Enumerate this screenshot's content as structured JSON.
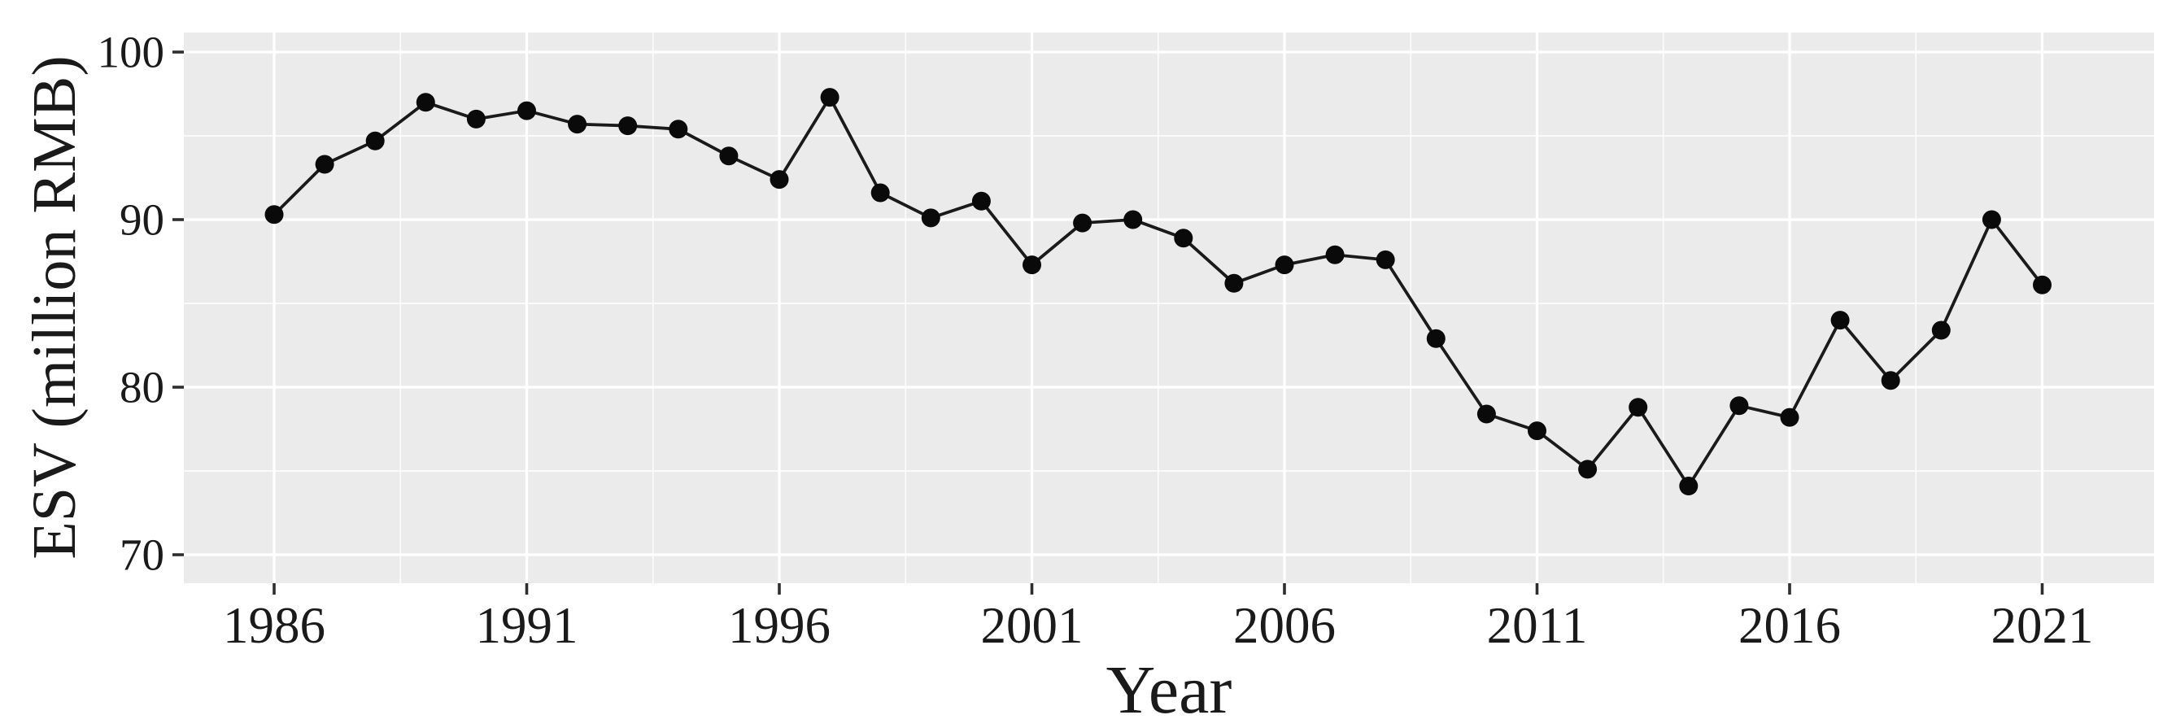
{
  "chart_data": {
    "type": "line",
    "title": "",
    "xlabel": "Year",
    "ylabel": "ESV (million RMB)",
    "x": [
      1986,
      1987,
      1988,
      1989,
      1990,
      1991,
      1992,
      1993,
      1994,
      1995,
      1996,
      1997,
      1998,
      1999,
      2000,
      2001,
      2002,
      2003,
      2004,
      2005,
      2006,
      2007,
      2008,
      2009,
      2010,
      2011,
      2012,
      2013,
      2014,
      2015,
      2016,
      2017,
      2018,
      2019,
      2020,
      2021
    ],
    "values": [
      90.3,
      93.3,
      94.7,
      97.0,
      96.0,
      96.5,
      95.7,
      95.6,
      95.4,
      93.8,
      92.4,
      97.3,
      91.6,
      90.1,
      91.1,
      87.3,
      89.8,
      90.0,
      88.9,
      86.2,
      87.3,
      87.9,
      87.6,
      82.9,
      78.4,
      77.4,
      75.1,
      78.8,
      74.1,
      78.9,
      78.2,
      84.0,
      80.4,
      83.4,
      90.0,
      86.1
    ],
    "x_tick_labels": [
      "1986",
      "1991",
      "1996",
      "2001",
      "2006",
      "2011",
      "2016",
      "2021"
    ],
    "x_tick_values": [
      1986,
      1991,
      1996,
      2001,
      2006,
      2011,
      2016,
      2021
    ],
    "x_minor_values": [
      1988.5,
      1993.5,
      1998.5,
      2003.5,
      2008.5,
      2013.5,
      2018.5
    ],
    "y_tick_labels": [
      "70",
      "80",
      "90",
      "100"
    ],
    "y_tick_values": [
      70,
      80,
      90,
      100
    ],
    "y_minor_values": [
      75,
      85,
      95
    ],
    "xlim": [
      1984.2,
      2023.2
    ],
    "ylim": [
      68.3,
      101.2
    ],
    "grid": "major-and-minor",
    "legend": "none",
    "marker": "filled-circle",
    "colors": {
      "panel_background": "#ebebeb",
      "gridline": "#ffffff",
      "line": "#1a1a1a",
      "point": "#0a0a0a",
      "tick_mark": "#2e2e2e",
      "text": "#1a1a1a",
      "figure_background": "#ffffff"
    }
  }
}
